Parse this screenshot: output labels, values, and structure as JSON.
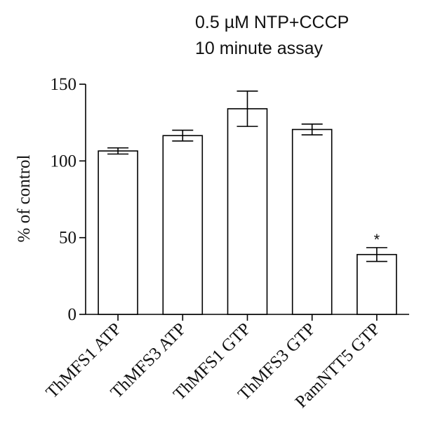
{
  "chart_data": {
    "type": "bar",
    "title_lines": [
      "0.5 µM NTP+CCCP",
      "10 minute assay"
    ],
    "xlabel": "",
    "ylabel": "% of control",
    "ylim": [
      0,
      150
    ],
    "yticks": [
      "0",
      "50",
      "100",
      "150"
    ],
    "categories": [
      "ThMFS1 ATP",
      "ThMFS3 ATP",
      "ThMFS1 GTP",
      "ThMFS3 GTP",
      "PamNTT5 GTP"
    ],
    "values": [
      106.5,
      116.5,
      134,
      120.5,
      39
    ],
    "errors": [
      2,
      3.5,
      11.5,
      3.5,
      4.5
    ],
    "annotations": [
      "",
      "",
      "",
      "",
      "*"
    ],
    "bar_fill": "#ffffff",
    "stroke_color": "#000000",
    "grid": false,
    "legend": false
  }
}
